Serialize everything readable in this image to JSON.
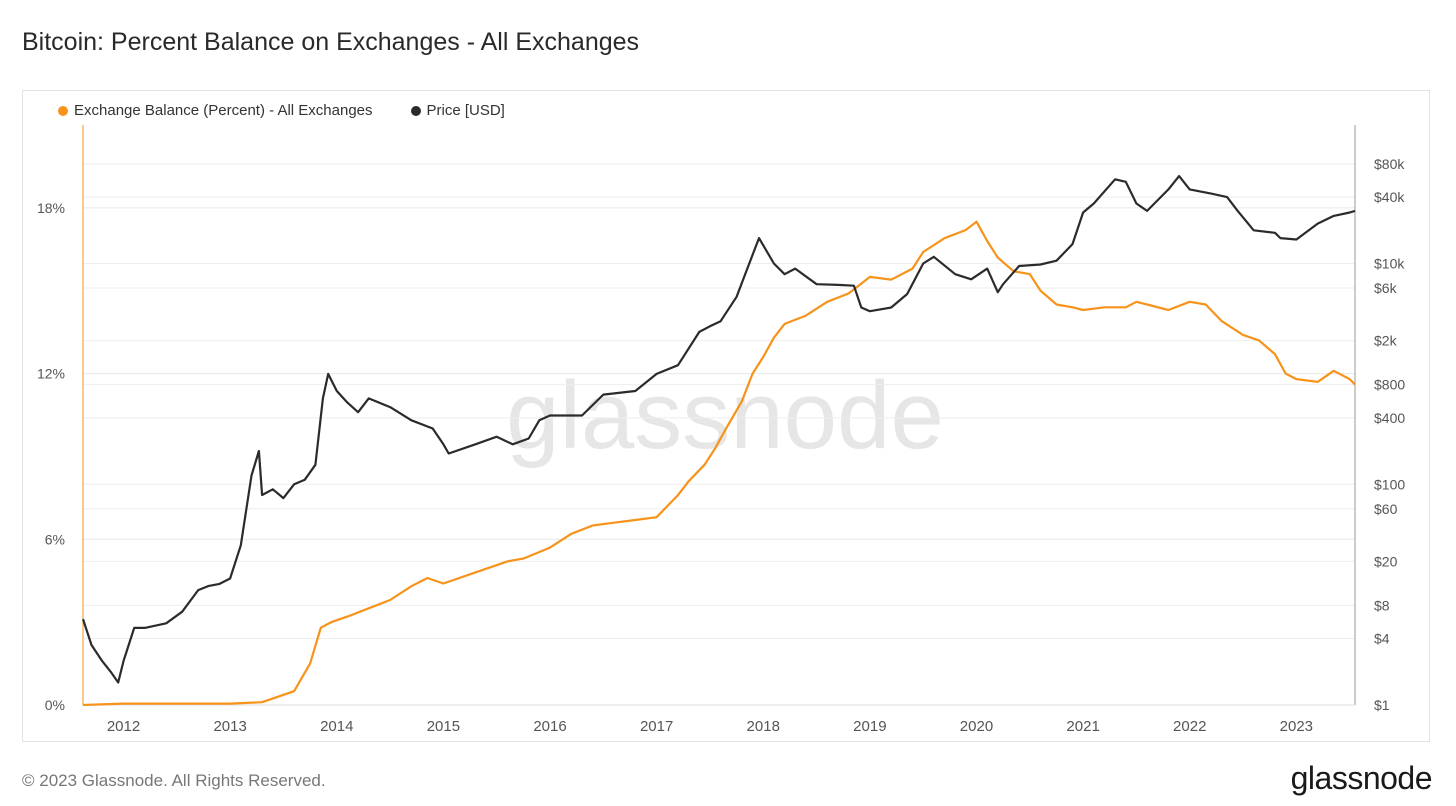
{
  "title": "Bitcoin: Percent Balance on Exchanges - All Exchanges",
  "footer": "© 2023 Glassnode. All Rights Reserved.",
  "brand": "glassnode",
  "watermark": "glassnode",
  "colors": {
    "exchange": "#f7931a",
    "price": "#2b2b2b",
    "grid": "#eeeeee",
    "axis": "#999999"
  },
  "chart_data": {
    "type": "line",
    "title": "Bitcoin: Percent Balance on Exchanges - All Exchanges",
    "legend": [
      "Exchange Balance (Percent) - All Exchanges",
      "Price [USD]"
    ],
    "x_ticks": [
      "2012",
      "2013",
      "2014",
      "2015",
      "2016",
      "2017",
      "2018",
      "2019",
      "2020",
      "2021",
      "2022",
      "2023"
    ],
    "xlim": [
      2011.62,
      2023.55
    ],
    "y_left_ticks": [
      "0%",
      "6%",
      "12%",
      "18%"
    ],
    "y_left_values": [
      0,
      6,
      12,
      18
    ],
    "ylim_left": [
      0,
      21
    ],
    "y_right_ticks": [
      "$1",
      "$4",
      "$8",
      "$20",
      "$60",
      "$100",
      "$400",
      "$800",
      "$2k",
      "$6k",
      "$10k",
      "$40k",
      "$80k"
    ],
    "y_right_values": [
      1,
      4,
      8,
      20,
      60,
      100,
      400,
      800,
      2000,
      6000,
      10000,
      40000,
      80000
    ],
    "ylim_right_log": [
      1,
      180000
    ],
    "series": [
      {
        "name": "Exchange Balance (Percent) - All Exchanges",
        "axis": "left",
        "x": [
          2011.62,
          2012.0,
          2012.5,
          2013.0,
          2013.3,
          2013.6,
          2013.75,
          2013.85,
          2013.95,
          2014.1,
          2014.3,
          2014.5,
          2014.7,
          2014.85,
          2015.0,
          2015.3,
          2015.6,
          2015.75,
          2016.0,
          2016.2,
          2016.4,
          2016.6,
          2016.8,
          2017.0,
          2017.1,
          2017.2,
          2017.3,
          2017.45,
          2017.55,
          2017.65,
          2017.8,
          2017.9,
          2018.0,
          2018.1,
          2018.2,
          2018.4,
          2018.6,
          2018.8,
          2018.9,
          2019.0,
          2019.2,
          2019.4,
          2019.5,
          2019.7,
          2019.9,
          2020.0,
          2020.1,
          2020.2,
          2020.35,
          2020.5,
          2020.6,
          2020.75,
          2020.9,
          2021.0,
          2021.2,
          2021.4,
          2021.5,
          2021.6,
          2021.8,
          2022.0,
          2022.15,
          2022.3,
          2022.5,
          2022.65,
          2022.8,
          2022.9,
          2023.0,
          2023.2,
          2023.35,
          2023.5,
          2023.55
        ],
        "values": [
          0.0,
          0.05,
          0.05,
          0.05,
          0.1,
          0.5,
          1.5,
          2.8,
          3.0,
          3.2,
          3.5,
          3.8,
          4.3,
          4.6,
          4.4,
          4.8,
          5.2,
          5.3,
          5.7,
          6.2,
          6.5,
          6.6,
          6.7,
          6.8,
          7.2,
          7.6,
          8.1,
          8.7,
          9.3,
          10.0,
          11.0,
          12.0,
          12.6,
          13.3,
          13.8,
          14.1,
          14.6,
          14.9,
          15.2,
          15.5,
          15.4,
          15.8,
          16.4,
          16.9,
          17.2,
          17.5,
          16.8,
          16.2,
          15.7,
          15.6,
          15.0,
          14.5,
          14.4,
          14.3,
          14.4,
          14.4,
          14.6,
          14.5,
          14.3,
          14.6,
          14.5,
          13.9,
          13.4,
          13.2,
          12.7,
          12.0,
          11.8,
          11.7,
          12.1,
          11.8,
          11.6
        ]
      },
      {
        "name": "Price [USD]",
        "axis": "right",
        "x": [
          2011.62,
          2011.7,
          2011.8,
          2011.88,
          2011.95,
          2012.0,
          2012.1,
          2012.2,
          2012.4,
          2012.55,
          2012.7,
          2012.8,
          2012.9,
          2013.0,
          2013.1,
          2013.2,
          2013.27,
          2013.3,
          2013.4,
          2013.5,
          2013.6,
          2013.7,
          2013.8,
          2013.87,
          2013.92,
          2014.0,
          2014.1,
          2014.2,
          2014.3,
          2014.5,
          2014.7,
          2014.9,
          2015.0,
          2015.05,
          2015.3,
          2015.5,
          2015.65,
          2015.8,
          2015.9,
          2016.0,
          2016.3,
          2016.5,
          2016.8,
          2017.0,
          2017.2,
          2017.4,
          2017.5,
          2017.6,
          2017.75,
          2017.85,
          2017.96,
          2018.1,
          2018.2,
          2018.3,
          2018.5,
          2018.7,
          2018.85,
          2018.92,
          2019.0,
          2019.2,
          2019.35,
          2019.5,
          2019.6,
          2019.8,
          2019.95,
          2020.1,
          2020.2,
          2020.25,
          2020.4,
          2020.6,
          2020.75,
          2020.9,
          2021.0,
          2021.1,
          2021.3,
          2021.4,
          2021.5,
          2021.6,
          2021.8,
          2021.9,
          2022.0,
          2022.2,
          2022.35,
          2022.45,
          2022.6,
          2022.8,
          2022.85,
          2023.0,
          2023.2,
          2023.35,
          2023.5,
          2023.55
        ],
        "values": [
          6,
          3.5,
          2.5,
          2.0,
          1.6,
          2.5,
          5,
          5,
          5.5,
          7,
          11,
          12,
          12.5,
          14,
          28,
          120,
          200,
          80,
          90,
          75,
          100,
          110,
          150,
          600,
          1000,
          700,
          550,
          450,
          600,
          500,
          380,
          320,
          230,
          190,
          230,
          270,
          230,
          260,
          380,
          420,
          420,
          650,
          700,
          1000,
          1200,
          2400,
          2700,
          3000,
          5000,
          9000,
          17000,
          10000,
          8000,
          9000,
          6500,
          6400,
          6300,
          4000,
          3700,
          4000,
          5300,
          10000,
          11500,
          8000,
          7200,
          9000,
          5500,
          6500,
          9500,
          9800,
          10600,
          15000,
          29000,
          35000,
          58000,
          55000,
          35000,
          30000,
          47000,
          62000,
          47000,
          43000,
          40000,
          30000,
          20000,
          19000,
          17000,
          16500,
          23000,
          27000,
          29000,
          30000
        ]
      }
    ]
  }
}
